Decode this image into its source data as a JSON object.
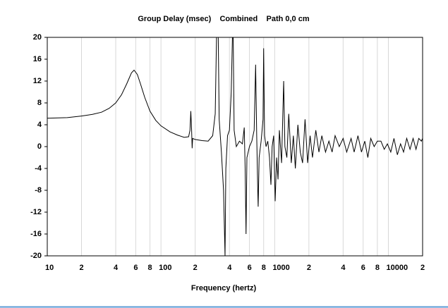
{
  "chart_data": {
    "type": "line",
    "title": "Group Delay (msec)    Combined    Path 0,0 cm",
    "x_label": "Frequency (hertz)",
    "log_x": true,
    "grid": true,
    "xlim": [
      10,
      20000
    ],
    "ylim": [
      -20,
      20
    ],
    "yticks": [
      20,
      16,
      12,
      8,
      4,
      0,
      -4,
      -8,
      -12,
      -16,
      -20
    ],
    "xticks": [
      10,
      {
        "value": 20,
        "label": "2"
      },
      {
        "value": 40,
        "label": "4"
      },
      {
        "value": 60,
        "label": "6"
      },
      {
        "value": 80,
        "label": "8"
      },
      100,
      {
        "value": 200,
        "label": "2"
      },
      {
        "value": 400,
        "label": "4"
      },
      {
        "value": 600,
        "label": "6"
      },
      {
        "value": 800,
        "label": "8"
      },
      1000,
      {
        "value": 2000,
        "label": "2"
      },
      {
        "value": 4000,
        "label": "4"
      },
      {
        "value": 6000,
        "label": "6"
      },
      {
        "value": 8000,
        "label": "8"
      },
      10000,
      {
        "value": 20000,
        "label": "2"
      }
    ],
    "x": [
      10,
      15,
      20,
      25,
      30,
      35,
      40,
      45,
      50,
      55,
      58,
      62,
      66,
      72,
      80,
      90,
      100,
      120,
      140,
      160,
      175,
      180,
      183,
      186,
      188,
      190,
      200,
      230,
      260,
      285,
      300,
      308,
      315,
      325,
      340,
      355,
      366,
      372,
      385,
      400,
      415,
      425,
      432,
      440,
      460,
      490,
      520,
      540,
      550,
      560,
      570,
      600,
      630,
      660,
      680,
      695,
      710,
      716,
      730,
      760,
      790,
      800,
      815,
      840,
      870,
      900,
      927,
      950,
      980,
      1010,
      1040,
      1070,
      1100,
      1150,
      1200,
      1230,
      1280,
      1330,
      1400,
      1460,
      1520,
      1600,
      1680,
      1760,
      1850,
      1950,
      2050,
      2150,
      2300,
      2450,
      2600,
      2800,
      3000,
      3200,
      3400,
      3700,
      4000,
      4300,
      4700,
      5000,
      5400,
      5800,
      6200,
      6600,
      7000,
      7500,
      8000,
      8600,
      9200,
      9800,
      10500,
      11200,
      12000,
      12800,
      13600,
      14500,
      15500,
      16500,
      17500,
      18500,
      19500,
      20000
    ],
    "series": [
      {
        "color": "#000000",
        "values": [
          5.2,
          5.3,
          5.6,
          5.9,
          6.3,
          7,
          8,
          9.5,
          11.5,
          13.5,
          14,
          13.2,
          11.5,
          9,
          6.5,
          4.8,
          3.8,
          2.7,
          2.1,
          1.7,
          1.8,
          3,
          6.5,
          3,
          -0.3,
          1.5,
          1.3,
          1.1,
          1,
          2,
          6,
          20,
          30,
          5,
          -1,
          -8,
          -20,
          -4,
          2,
          3,
          10,
          20,
          20,
          3,
          0,
          1,
          0.5,
          3.5,
          -4,
          -16,
          -2,
          0,
          1,
          3,
          15,
          2,
          -8,
          -11,
          -2,
          1,
          5,
          18,
          2,
          0,
          1,
          -2,
          -7,
          0,
          2,
          -10,
          -2,
          -6,
          3,
          -3,
          12,
          0,
          -2,
          6,
          -3,
          2,
          -4,
          4,
          -1,
          -3,
          5,
          -3,
          2,
          -2,
          3,
          -1,
          2,
          -1,
          1,
          -1,
          2,
          0,
          1.5,
          -1,
          1.5,
          -1,
          2,
          -1,
          1,
          -2,
          1.5,
          0,
          1,
          1,
          -0.5,
          0.5,
          -1,
          1.5,
          -1.5,
          0.5,
          -1,
          1.5,
          -0.5,
          1.5,
          -0.5,
          1.5,
          1,
          1.5
        ]
      }
    ]
  }
}
